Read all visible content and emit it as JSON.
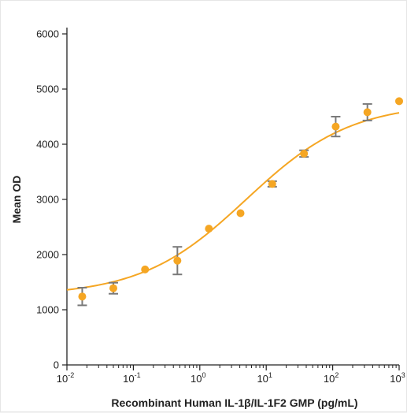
{
  "chart_data": {
    "type": "scatter",
    "xlabel": "Recombinant Human IL-1β/IL-1F2 GMP (pg/mL)",
    "ylabel": "Mean OD",
    "x_scale": "log",
    "xlim": [
      0.01,
      1000
    ],
    "ylim": [
      0,
      6000
    ],
    "y_ticks": [
      0,
      1000,
      2000,
      3000,
      4000,
      5000,
      6000
    ],
    "x_ticks": [
      {
        "base": "10",
        "exp": "-2"
      },
      {
        "base": "10",
        "exp": "-1"
      },
      {
        "base": "10",
        "exp": "0"
      },
      {
        "base": "10",
        "exp": "1"
      },
      {
        "base": "10",
        "exp": "2"
      },
      {
        "base": "10",
        "exp": "3"
      }
    ],
    "grid": false,
    "points": [
      {
        "x": 0.017,
        "y": 1240,
        "err": 160
      },
      {
        "x": 0.05,
        "y": 1390,
        "err": 100
      },
      {
        "x": 0.15,
        "y": 1730,
        "err": 0
      },
      {
        "x": 0.46,
        "y": 1890,
        "err": 250
      },
      {
        "x": 1.37,
        "y": 2470,
        "err": 0
      },
      {
        "x": 4.1,
        "y": 2750,
        "err": 0
      },
      {
        "x": 12.3,
        "y": 3280,
        "err": 50
      },
      {
        "x": 37,
        "y": 3830,
        "err": 60
      },
      {
        "x": 111,
        "y": 4320,
        "err": 180
      },
      {
        "x": 333,
        "y": 4580,
        "err": 150
      },
      {
        "x": 1000,
        "y": 4780,
        "err": 0
      }
    ],
    "fit_curve": {
      "bottom": 1250,
      "top": 4750,
      "ec50": 5,
      "hill": 0.55
    },
    "colors": {
      "points": "#f5a623",
      "curve": "#f5a623",
      "error_bars": "#7a7a7a",
      "axes": "#222222"
    }
  }
}
